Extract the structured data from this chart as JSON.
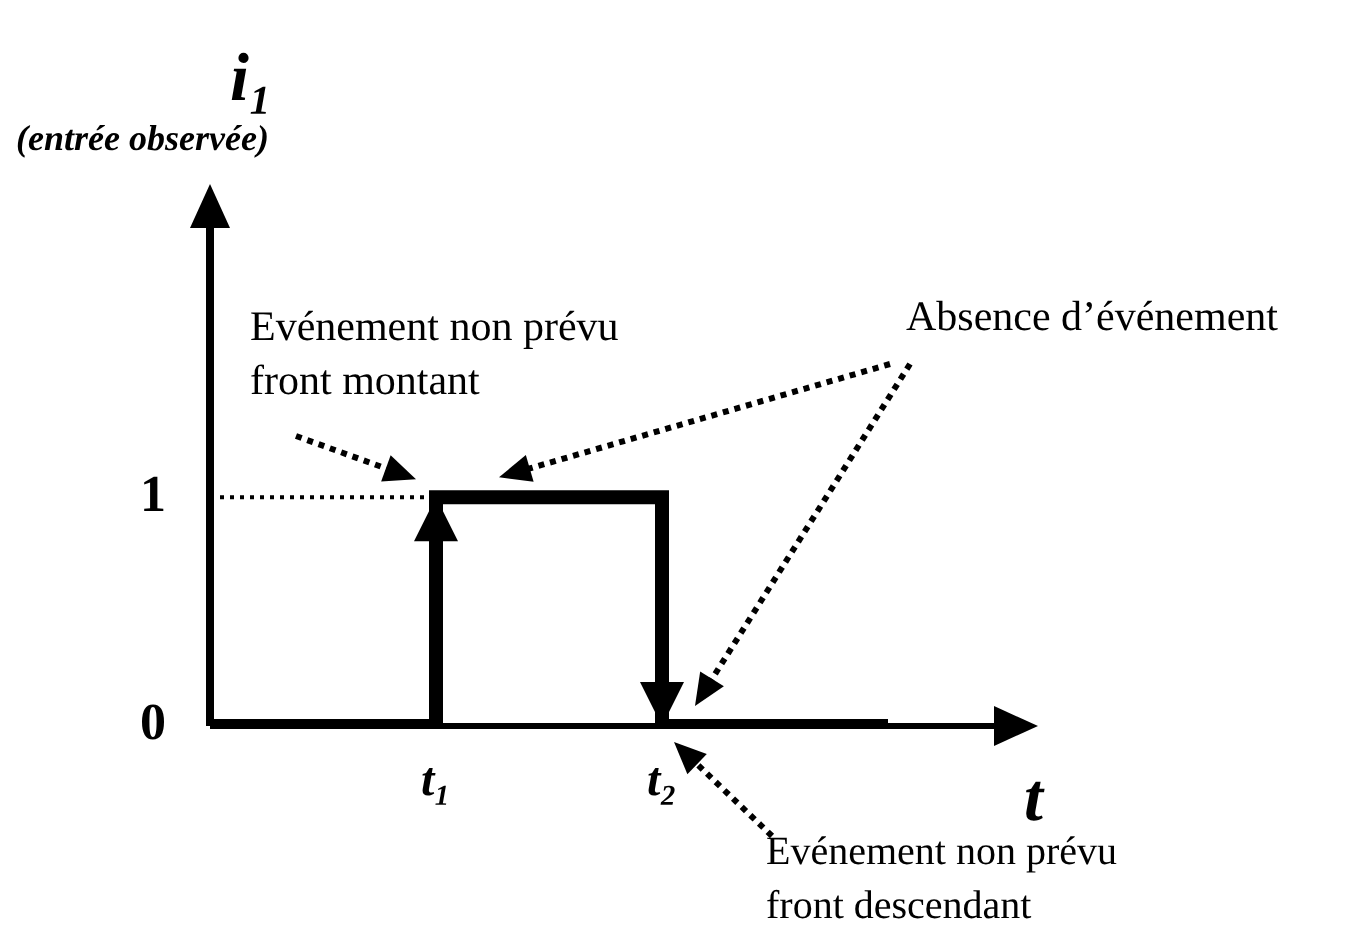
{
  "chart_data": {
    "type": "step",
    "ylabel": "i₁",
    "xlabel": "t",
    "categories": [
      null,
      "t₁",
      "t₂",
      null
    ],
    "series": [
      {
        "color": "#000000",
        "values": [
          0,
          1,
          0,
          0
        ]
      }
    ],
    "ylim": [
      0,
      2.3
    ],
    "yticks": [
      0,
      1
    ],
    "grid": false,
    "legend": false,
    "marker": "none",
    "line_style": "solid",
    "ref_lines": [
      {
        "axis": "y",
        "value": 1,
        "line_style": "dotted",
        "color": "#000000"
      }
    ],
    "annotations": [
      "Evénement non prévu\nfront montant",
      "Absence d’événement",
      "Evénement non prévu\nfront descendant",
      "(entrée observée)"
    ]
  }
}
